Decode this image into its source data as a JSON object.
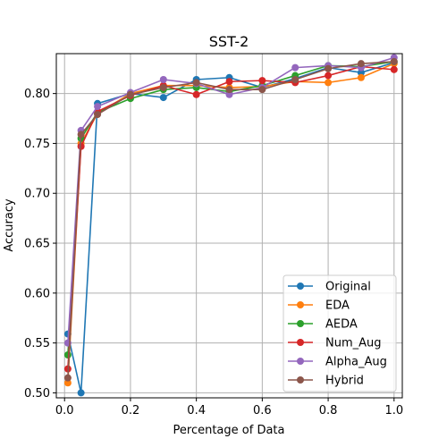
{
  "chart_data": {
    "type": "line",
    "title": "SST-2",
    "xlabel": "Percentage of Data",
    "ylabel": "Accuracy",
    "xlim": [
      -0.025,
      1.025
    ],
    "ylim": [
      0.495,
      0.84
    ],
    "xticks": [
      0.0,
      0.2,
      0.4,
      0.6,
      0.8,
      1.0
    ],
    "xtick_labels": [
      "0.0",
      "0.2",
      "0.4",
      "0.6",
      "0.8",
      "1.0"
    ],
    "yticks": [
      0.5,
      0.55,
      0.6,
      0.65,
      0.7,
      0.75,
      0.8
    ],
    "ytick_labels": [
      "0.50",
      "0.55",
      "0.60",
      "0.65",
      "0.70",
      "0.75",
      "0.80"
    ],
    "grid": true,
    "legend_position": "lower-right",
    "x": [
      0.01,
      0.05,
      0.1,
      0.2,
      0.3,
      0.4,
      0.5,
      0.6,
      0.7,
      0.8,
      0.9,
      1.0
    ],
    "series": [
      {
        "name": "Original",
        "color": "#1f77b4",
        "values": [
          0.559,
          0.5,
          0.79,
          0.8,
          0.796,
          0.814,
          0.816,
          0.806,
          0.815,
          0.826,
          0.821,
          0.831
        ]
      },
      {
        "name": "EDA",
        "color": "#ff7f0e",
        "values": [
          0.51,
          0.75,
          0.78,
          0.8,
          0.808,
          0.808,
          0.806,
          0.807,
          0.812,
          0.811,
          0.816,
          0.83
        ]
      },
      {
        "name": "AEDA",
        "color": "#2ca02c",
        "values": [
          0.538,
          0.755,
          0.781,
          0.795,
          0.804,
          0.806,
          0.802,
          0.808,
          0.818,
          0.828,
          0.827,
          0.832
        ]
      },
      {
        "name": "Num_Aug",
        "color": "#d62728",
        "values": [
          0.524,
          0.747,
          0.782,
          0.798,
          0.808,
          0.799,
          0.812,
          0.813,
          0.811,
          0.818,
          0.827,
          0.824
        ]
      },
      {
        "name": "Alpha_Aug",
        "color": "#9467bd",
        "values": [
          0.55,
          0.763,
          0.787,
          0.801,
          0.814,
          0.81,
          0.799,
          0.806,
          0.826,
          0.828,
          0.826,
          0.836
        ]
      },
      {
        "name": "Hybrid",
        "color": "#8c564b",
        "values": [
          0.515,
          0.759,
          0.779,
          0.799,
          0.806,
          0.811,
          0.804,
          0.804,
          0.814,
          0.825,
          0.83,
          0.832
        ]
      }
    ]
  }
}
